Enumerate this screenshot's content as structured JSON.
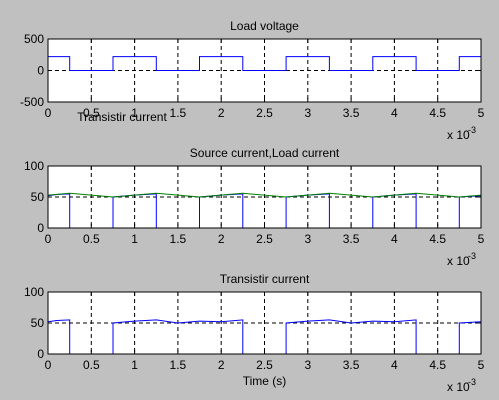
{
  "figure": {
    "background": "#c0c0c0"
  },
  "chart_data": [
    {
      "type": "line",
      "title": "Load voltage",
      "xlabel": "",
      "ylabel": "",
      "xlim": [
        0,
        5
      ],
      "ylim": [
        -500,
        500
      ],
      "x_ticks": [
        "0",
        "0.5",
        "1",
        "1.5",
        "2",
        "2.5",
        "3",
        "3.5",
        "4",
        "4.5",
        "5"
      ],
      "y_ticks": [
        "500",
        "0",
        "-500"
      ],
      "x_multiplier_base": "x 10",
      "x_multiplier_exp": "-3",
      "grid": true,
      "series": [
        {
          "color": "#0000ff",
          "x": [
            0,
            0.25,
            0.25,
            0.75,
            0.75,
            1.25,
            1.25,
            1.75,
            1.75,
            2.25,
            2.25,
            2.75,
            2.75,
            3.25,
            3.25,
            3.75,
            3.75,
            4.25,
            4.25,
            4.75,
            4.75,
            5
          ],
          "y": [
            220,
            220,
            0,
            0,
            220,
            220,
            0,
            0,
            220,
            220,
            0,
            0,
            220,
            220,
            0,
            0,
            220,
            220,
            0,
            0,
            220,
            220
          ]
        }
      ]
    },
    {
      "type": "line",
      "title": "Source current,Load current",
      "xlabel": "",
      "ylabel": "",
      "xlim": [
        0,
        5
      ],
      "ylim": [
        0,
        100
      ],
      "x_ticks": [
        "0",
        "0.5",
        "1",
        "1.5",
        "2",
        "2.5",
        "3",
        "3.5",
        "4",
        "4.5",
        "5"
      ],
      "y_ticks": [
        "100",
        "50",
        "0"
      ],
      "x_multiplier_base": "x 10",
      "x_multiplier_exp": "-3",
      "grid": true,
      "series": [
        {
          "color": "#0000ff",
          "x": [
            0,
            0.1,
            0.25,
            0.25,
            0.75,
            0.75,
            1.0,
            1.25,
            1.25,
            1.75,
            1.75,
            2.0,
            2.25,
            2.25,
            2.75,
            2.75,
            3.0,
            3.25,
            3.25,
            3.75,
            3.75,
            4.0,
            4.25,
            4.25,
            4.75,
            4.75,
            5.0
          ],
          "y": [
            52,
            54,
            55,
            0,
            0,
            50,
            53,
            55,
            0,
            0,
            50,
            53,
            55,
            0,
            0,
            50,
            53,
            55,
            0,
            0,
            50,
            53,
            55,
            0,
            0,
            50,
            52
          ]
        },
        {
          "color": "#008000",
          "x": [
            0,
            0.25,
            0.75,
            1.25,
            1.75,
            2.25,
            2.75,
            3.25,
            3.75,
            4.25,
            4.75,
            5.0
          ],
          "y": [
            53,
            56,
            50,
            56,
            50,
            56,
            50,
            56,
            50,
            56,
            50,
            53
          ]
        }
      ]
    },
    {
      "type": "line",
      "title": "Transistir current",
      "xlabel": "Time (s)",
      "ylabel": "",
      "xlim": [
        0,
        5
      ],
      "ylim": [
        0,
        100
      ],
      "x_ticks": [
        "0",
        "0.5",
        "1",
        "1.5",
        "2",
        "2.5",
        "3",
        "3.5",
        "4",
        "4.5",
        "5"
      ],
      "y_ticks": [
        "100",
        "50",
        "0"
      ],
      "x_multiplier_base": "x 10",
      "x_multiplier_exp": "-3",
      "grid": true,
      "series": [
        {
          "color": "#0000ff",
          "x": [
            0,
            0.1,
            0.25,
            0.25,
            0.75,
            0.75,
            1.0,
            1.25,
            1.5,
            1.75,
            2.0,
            2.25,
            2.25,
            2.75,
            2.75,
            3.0,
            3.25,
            3.5,
            3.75,
            4.0,
            4.25,
            4.25,
            4.75,
            4.75,
            5.0
          ],
          "y": [
            52,
            54,
            55,
            0,
            0,
            50,
            53,
            55,
            50,
            53,
            52,
            55,
            0,
            0,
            50,
            53,
            55,
            50,
            53,
            52,
            55,
            0,
            0,
            50,
            52
          ]
        }
      ]
    }
  ],
  "overlap_label": "Transistir current"
}
